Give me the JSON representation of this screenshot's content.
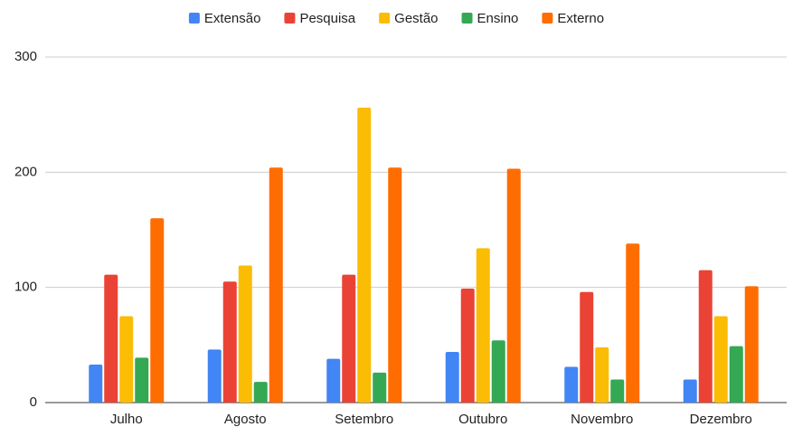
{
  "chart_data": {
    "type": "bar",
    "categories": [
      "Julho",
      "Agosto",
      "Setembro",
      "Outubro",
      "Novembro",
      "Dezembro"
    ],
    "series": [
      {
        "name": "Extensão",
        "color": "#4285f4",
        "values": [
          33,
          46,
          38,
          44,
          31,
          20
        ]
      },
      {
        "name": "Pesquisa",
        "color": "#ea4335",
        "values": [
          111,
          105,
          111,
          99,
          96,
          115
        ]
      },
      {
        "name": "Gestão",
        "color": "#fbbc04",
        "values": [
          75,
          119,
          256,
          134,
          48,
          75
        ]
      },
      {
        "name": "Ensino",
        "color": "#34a853",
        "values": [
          39,
          18,
          26,
          54,
          20,
          49
        ]
      },
      {
        "name": "Externo",
        "color": "#ff6d01",
        "values": [
          160,
          204,
          204,
          203,
          138,
          101
        ]
      }
    ],
    "ylim": [
      0,
      300
    ],
    "yticks": [
      0,
      100,
      200,
      300
    ],
    "grid": true,
    "legend": "top"
  }
}
